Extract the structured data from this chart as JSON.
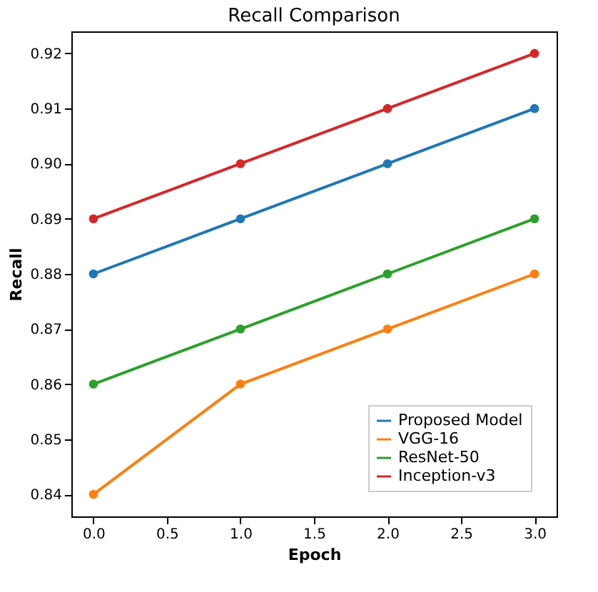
{
  "chart_data": {
    "type": "line",
    "title": "Recall Comparison",
    "xlabel": "Epoch",
    "ylabel": "Recall",
    "x": [
      0,
      1,
      2,
      3
    ],
    "series": [
      {
        "name": "Proposed Model",
        "color": "#1f77b4",
        "values": [
          0.88,
          0.89,
          0.9,
          0.91
        ]
      },
      {
        "name": "VGG-16",
        "color": "#ff7f0e",
        "values": [
          0.84,
          0.86,
          0.87,
          0.88
        ]
      },
      {
        "name": "ResNet-50",
        "color": "#2ca02c",
        "values": [
          0.86,
          0.87,
          0.88,
          0.89
        ]
      },
      {
        "name": "Inception-v3",
        "color": "#d62728",
        "values": [
          0.89,
          0.9,
          0.91,
          0.92
        ]
      }
    ],
    "xlim": [
      -0.15,
      3.15
    ],
    "ylim": [
      0.836,
      0.924
    ],
    "xticks": [
      {
        "value": 0,
        "label": "0.0"
      },
      {
        "value": 0.5,
        "label": "0.5"
      },
      {
        "value": 1,
        "label": "1.0"
      },
      {
        "value": 1.5,
        "label": "1.5"
      },
      {
        "value": 2,
        "label": "2.0"
      },
      {
        "value": 2.5,
        "label": "2.5"
      },
      {
        "value": 3,
        "label": "3.0"
      }
    ],
    "yticks": [
      0.84,
      0.85,
      0.86,
      0.87,
      0.88,
      0.89,
      {
        "value": 0.9,
        "label": "0.90"
      },
      0.91,
      0.92
    ],
    "legend": "bottom right",
    "marker": "circle",
    "line_style": "solid",
    "grid": false
  }
}
